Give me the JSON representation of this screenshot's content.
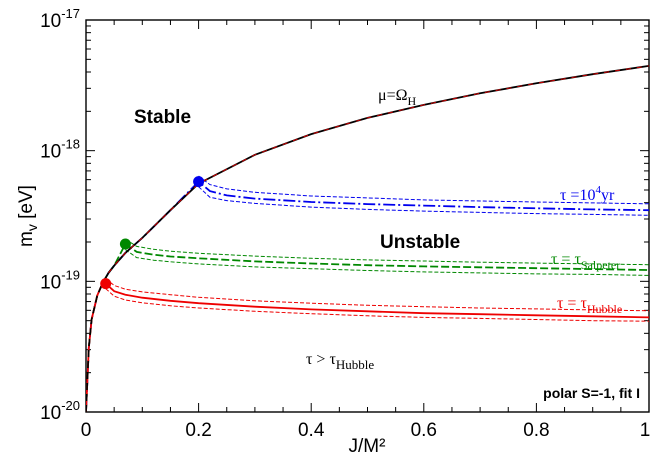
{
  "chart_data": {
    "type": "line",
    "xlabel": "J/M²",
    "ylabel": "m_v [eV]",
    "xlim": [
      0,
      1
    ],
    "ylim": [
      1e-20,
      1e-17
    ],
    "yscale": "log",
    "grid": false,
    "x_ticks": [
      "0",
      "0.2",
      "0.4",
      "0.6",
      "0.8",
      "1"
    ],
    "y_ticks": [
      {
        "base": "10",
        "exp": "-20"
      },
      {
        "base": "10",
        "exp": "-19"
      },
      {
        "base": "10",
        "exp": "-18"
      },
      {
        "base": "10",
        "exp": "-17"
      }
    ],
    "regions": {
      "stable": "Stable",
      "unstable": "Unstable"
    },
    "corner_text": "polar S=-1, fit I",
    "below_text": {
      "main": "τ > τ",
      "sub": "Hubble"
    },
    "boundary": {
      "label_main": "μ=Ω",
      "label_sub": "H",
      "x": [
        0.0,
        0.005,
        0.01,
        0.02,
        0.03,
        0.04,
        0.05,
        0.07,
        0.1,
        0.15,
        0.2,
        0.3,
        0.4,
        0.5,
        0.6,
        0.7,
        0.8,
        0.9,
        1.0
      ],
      "y": [
        1e-20,
        3.1e-20,
        5.1e-20,
        7.8e-20,
        9.8e-20,
        1.16e-19,
        1.32e-19,
        1.65e-19,
        2.15e-19,
        3.5e-19,
        5.6e-19,
        9.3e-19,
        1.34e-18,
        1.78e-18,
        2.24e-18,
        2.75e-18,
        3.28e-18,
        3.85e-18,
        4.45e-18
      ]
    },
    "series": [
      {
        "label_main": "τ =10",
        "label_sup": "4",
        "label_tail": "yr",
        "color": "#0000ee",
        "x": [
          0.2,
          0.22,
          0.25,
          0.3,
          0.4,
          0.5,
          0.6,
          0.7,
          0.8,
          0.9,
          1.0
        ],
        "y": [
          5.8e-19,
          4.9e-19,
          4.55e-19,
          4.3e-19,
          4.05e-19,
          3.9e-19,
          3.8e-19,
          3.7e-19,
          3.62e-19,
          3.55e-19,
          3.5e-19
        ],
        "band_lower": [
          5.3e-19,
          4.4e-19,
          4.15e-19,
          3.95e-19,
          3.7e-19,
          3.55e-19,
          3.45e-19,
          3.37e-19,
          3.3e-19,
          3.25e-19,
          3.2e-19
        ],
        "band_upper": [
          6.4e-19,
          5.5e-19,
          5.1e-19,
          4.8e-19,
          4.5e-19,
          4.35e-19,
          4.2e-19,
          4.12e-19,
          4.05e-19,
          3.98e-19,
          3.92e-19
        ],
        "marker": {
          "x": 0.2,
          "y": 5.8e-19
        }
      },
      {
        "label_main": "τ = τ",
        "label_sub": "Salpeter",
        "color": "#008800",
        "x": [
          0.07,
          0.09,
          0.12,
          0.15,
          0.2,
          0.3,
          0.4,
          0.5,
          0.6,
          0.7,
          0.8,
          0.9,
          1.0
        ],
        "y": [
          1.93e-19,
          1.68e-19,
          1.6e-19,
          1.55e-19,
          1.5e-19,
          1.42e-19,
          1.37e-19,
          1.33e-19,
          1.3e-19,
          1.28e-19,
          1.26e-19,
          1.24e-19,
          1.22e-19
        ],
        "band_lower": [
          1.75e-19,
          1.52e-19,
          1.45e-19,
          1.41e-19,
          1.36e-19,
          1.29e-19,
          1.25e-19,
          1.21e-19,
          1.18e-19,
          1.16e-19,
          1.14e-19,
          1.13e-19,
          1.11e-19
        ],
        "band_upper": [
          2.1e-19,
          1.85e-19,
          1.76e-19,
          1.7e-19,
          1.64e-19,
          1.56e-19,
          1.5e-19,
          1.46e-19,
          1.43e-19,
          1.4e-19,
          1.38e-19,
          1.36e-19,
          1.34e-19
        ],
        "marker": {
          "x": 0.07,
          "y": 1.93e-19
        }
      },
      {
        "label_main": "τ = τ",
        "label_sub": "Hubble",
        "color": "#ee0000",
        "x": [
          0.035,
          0.05,
          0.07,
          0.1,
          0.15,
          0.2,
          0.3,
          0.4,
          0.5,
          0.6,
          0.7,
          0.8,
          0.9,
          1.0
        ],
        "y": [
          9.6e-20,
          8.4e-20,
          7.9e-20,
          7.5e-20,
          7.1e-20,
          6.8e-20,
          6.4e-20,
          6.1e-20,
          5.9e-20,
          5.7e-20,
          5.6e-20,
          5.5e-20,
          5.4e-20,
          5.3e-20
        ],
        "band_lower": [
          8.8e-20,
          7.7e-20,
          7.2e-20,
          6.85e-20,
          6.5e-20,
          6.25e-20,
          5.9e-20,
          5.65e-20,
          5.45e-20,
          5.3e-20,
          5.2e-20,
          5.1e-20,
          5e-20,
          4.95e-20
        ],
        "band_upper": [
          1.05e-19,
          9.3e-20,
          8.7e-20,
          8.3e-20,
          7.9e-20,
          7.55e-20,
          7.1e-20,
          6.8e-20,
          6.55e-20,
          6.4e-20,
          6.25e-20,
          6.15e-20,
          6.05e-20,
          5.95e-20
        ],
        "marker": {
          "x": 0.035,
          "y": 9.6e-20
        }
      }
    ]
  }
}
